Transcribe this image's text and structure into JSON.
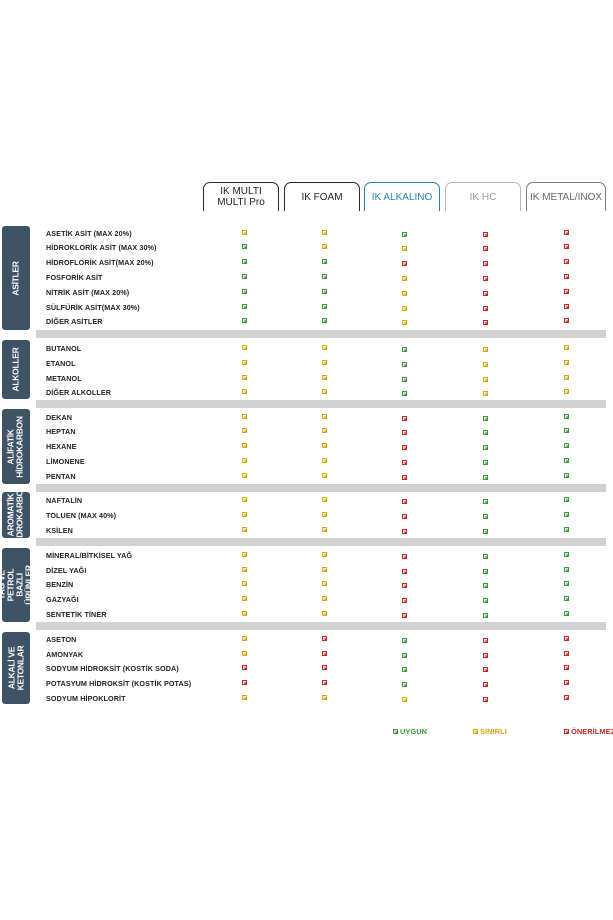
{
  "columns": [
    {
      "label": "IK MULTI\nMULTI Pro",
      "style": "dark"
    },
    {
      "label": "IK FOAM",
      "style": "dark"
    },
    {
      "label": "IK ALKALINO",
      "style": "blue"
    },
    {
      "label": "IK HC",
      "style": "gray"
    },
    {
      "label": "IK METAL/INOX",
      "style": "dgray"
    }
  ],
  "categories": [
    {
      "name": "ASİTLER",
      "rows": [
        {
          "label": "ASETİK ASİT (MAX 20%)",
          "marks": [
            "o",
            "o",
            "g",
            "r",
            "r"
          ]
        },
        {
          "label": "HİDROKLORİK ASİT (MAX 30%)",
          "marks": [
            "g",
            "o",
            "o",
            "r",
            "r"
          ]
        },
        {
          "label": "HİDROFLORİK ASİT(MAX 20%)",
          "marks": [
            "g",
            "g",
            "r",
            "r",
            "r"
          ]
        },
        {
          "label": "FOSFORİK ASİT",
          "marks": [
            "g",
            "g",
            "o",
            "r",
            "r"
          ]
        },
        {
          "label": "NİTRİK ASİT (MAX 20%)",
          "marks": [
            "g",
            "g",
            "o",
            "r",
            "r"
          ]
        },
        {
          "label": "SÜLFÜRİK ASİT(MAX 30%)",
          "marks": [
            "g",
            "g",
            "o",
            "r",
            "r"
          ]
        },
        {
          "label": "DİĞER ASİTLER",
          "marks": [
            "g",
            "g",
            "o",
            "r",
            "r"
          ]
        }
      ]
    },
    {
      "name": "ALKOLLER",
      "rows": [
        {
          "label": "BUTANOL",
          "marks": [
            "o",
            "o",
            "g",
            "o",
            "o"
          ]
        },
        {
          "label": "ETANOL",
          "marks": [
            "o",
            "o",
            "g",
            "o",
            "o"
          ]
        },
        {
          "label": "METANOL",
          "marks": [
            "o",
            "o",
            "g",
            "o",
            "o"
          ]
        },
        {
          "label": "DİĞER ALKOLLER",
          "marks": [
            "o",
            "o",
            "g",
            "o",
            "o"
          ]
        }
      ]
    },
    {
      "name": "ALİFATİK\nHİDROKARBON",
      "rows": [
        {
          "label": "DEKAN",
          "marks": [
            "o",
            "o",
            "r",
            "g",
            "g"
          ]
        },
        {
          "label": "HEPTAN",
          "marks": [
            "o",
            "o",
            "r",
            "g",
            "g"
          ]
        },
        {
          "label": "HEXANE",
          "marks": [
            "o",
            "o",
            "r",
            "g",
            "g"
          ]
        },
        {
          "label": "LİMONENE",
          "marks": [
            "o",
            "o",
            "r",
            "g",
            "g"
          ]
        },
        {
          "label": "PENTAN",
          "marks": [
            "o",
            "o",
            "r",
            "g",
            "g"
          ]
        }
      ]
    },
    {
      "name": "AROMATİK\nHİDROKARBON",
      "rows": [
        {
          "label": "NAFTALİN",
          "marks": [
            "o",
            "o",
            "r",
            "g",
            "g"
          ]
        },
        {
          "label": "TOLUEN (MAX 40%)",
          "marks": [
            "o",
            "o",
            "r",
            "g",
            "g"
          ]
        },
        {
          "label": "KSİLEN",
          "marks": [
            "o",
            "o",
            "r",
            "g",
            "g"
          ]
        }
      ]
    },
    {
      "name": "YAĞ VE PETROL\nBAZLI ÜRÜNLER",
      "rows": [
        {
          "label": "MİNERAL/BİTKİSEL YAĞ",
          "marks": [
            "o",
            "o",
            "r",
            "g",
            "g"
          ]
        },
        {
          "label": "DİZEL YAĞI",
          "marks": [
            "o",
            "o",
            "r",
            "g",
            "g"
          ]
        },
        {
          "label": "BENZİN",
          "marks": [
            "o",
            "o",
            "r",
            "g",
            "g"
          ]
        },
        {
          "label": "GAZYAĞI",
          "marks": [
            "o",
            "o",
            "r",
            "g",
            "g"
          ]
        },
        {
          "label": "SENTETİK TİNER",
          "marks": [
            "o",
            "o",
            "r",
            "g",
            "g"
          ]
        }
      ]
    },
    {
      "name": "ALKALİ VE\nKETONLAR",
      "rows": [
        {
          "label": "ASETON",
          "marks": [
            "o",
            "r",
            "g",
            "r",
            "r"
          ]
        },
        {
          "label": "AMONYAK",
          "marks": [
            "o",
            "r",
            "g",
            "r",
            "r"
          ]
        },
        {
          "label": "SODYUM HİDROKSİT (KOSTİK SODA)",
          "marks": [
            "r",
            "r",
            "g",
            "r",
            "r"
          ]
        },
        {
          "label": "POTASYUM HİDROKSİT (KOSTİK POTAS)",
          "marks": [
            "r",
            "r",
            "g",
            "r",
            "r"
          ]
        },
        {
          "label": "SODYUM HİPOKLORİT",
          "marks": [
            "o",
            "o",
            "o",
            "r",
            "r"
          ]
        }
      ]
    }
  ],
  "legend": [
    {
      "label": "UYGUN",
      "color": "#3c9a3a",
      "mark": "g"
    },
    {
      "label": "SINIRLI",
      "color": "#d9a21f",
      "mark": "o"
    },
    {
      "label": "ÖNERİLMEZ",
      "color": "#c22b2b",
      "mark": "r"
    }
  ]
}
